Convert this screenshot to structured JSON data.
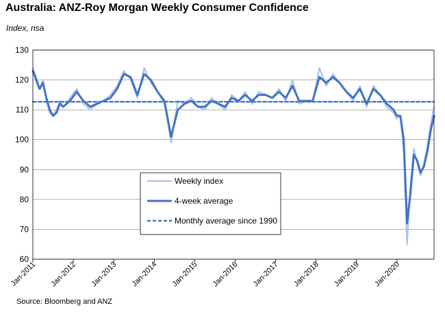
{
  "title": "Australia: ANZ-Roy Morgan Weekly Consumer Confidence",
  "subtitle": "Index, nsa",
  "source": "Source: Bloomberg and ANZ",
  "chart_data": {
    "type": "line",
    "title": "Australia: ANZ-Roy Morgan Weekly Consumer Confidence",
    "ylabel": "Index, nsa",
    "xlabel": "",
    "ylim": [
      60,
      130
    ],
    "yticks": [
      60,
      70,
      80,
      90,
      100,
      110,
      120,
      130
    ],
    "xlim": [
      "2011-01",
      "2020-12"
    ],
    "xticks": [
      "Jan-2011",
      "Jan-2012",
      "Jan-2013",
      "Jan-2014",
      "Jan-2015",
      "Jan-2016",
      "Jan-2017",
      "Jan-2018",
      "Jan-2019",
      "Jan-2020"
    ],
    "grid": "horizontal",
    "legend_position": "center-left",
    "series": [
      {
        "name": "Weekly index",
        "color": "#a9c3e8",
        "style": "thin-solid",
        "x": [
          "2011-01",
          "2011-02",
          "2011-03",
          "2011-04",
          "2011-05",
          "2011-06",
          "2011-07",
          "2011-08",
          "2011-09",
          "2011-10",
          "2011-11",
          "2011-12",
          "2012-02",
          "2012-04",
          "2012-06",
          "2012-08",
          "2012-10",
          "2012-12",
          "2013-02",
          "2013-04",
          "2013-06",
          "2013-08",
          "2013-10",
          "2013-12",
          "2014-02",
          "2014-04",
          "2014-05",
          "2014-06",
          "2014-08",
          "2014-10",
          "2014-12",
          "2015-02",
          "2015-04",
          "2015-06",
          "2015-08",
          "2015-10",
          "2015-12",
          "2016-02",
          "2016-04",
          "2016-06",
          "2016-08",
          "2016-10",
          "2016-12",
          "2017-02",
          "2017-04",
          "2017-06",
          "2017-08",
          "2017-10",
          "2017-12",
          "2018-02",
          "2018-04",
          "2018-06",
          "2018-08",
          "2018-10",
          "2018-12",
          "2019-02",
          "2019-04",
          "2019-06",
          "2019-08",
          "2019-10",
          "2019-12",
          "2020-01",
          "2020-02",
          "2020-03",
          "2020-04",
          "2020-05",
          "2020-06",
          "2020-07",
          "2020-08",
          "2020-09",
          "2020-10",
          "2020-11",
          "2020-12"
        ],
        "y": [
          124,
          121,
          117,
          120,
          113,
          109,
          108,
          110,
          113,
          111,
          112,
          114,
          117,
          112,
          110,
          112,
          113,
          115,
          118,
          123,
          120,
          114,
          124,
          119,
          116,
          112,
          106,
          99,
          113,
          112,
          114,
          111,
          110,
          114,
          112,
          110,
          115,
          113,
          116,
          112,
          116,
          115,
          114,
          117,
          113,
          120,
          112,
          113,
          113,
          124,
          118,
          122,
          119,
          116,
          113,
          118,
          111,
          118,
          115,
          111,
          109,
          107,
          108,
          96,
          65,
          85,
          97,
          92,
          88,
          92,
          98,
          105,
          111
        ]
      },
      {
        "name": "4-week average",
        "color": "#4472c4",
        "style": "thick-solid",
        "x": [
          "2011-01",
          "2011-02",
          "2011-03",
          "2011-04",
          "2011-05",
          "2011-06",
          "2011-07",
          "2011-08",
          "2011-09",
          "2011-10",
          "2011-11",
          "2011-12",
          "2012-02",
          "2012-04",
          "2012-06",
          "2012-08",
          "2012-10",
          "2012-12",
          "2013-02",
          "2013-04",
          "2013-06",
          "2013-08",
          "2013-10",
          "2013-12",
          "2014-02",
          "2014-04",
          "2014-05",
          "2014-06",
          "2014-08",
          "2014-10",
          "2014-12",
          "2015-02",
          "2015-04",
          "2015-06",
          "2015-08",
          "2015-10",
          "2015-12",
          "2016-02",
          "2016-04",
          "2016-06",
          "2016-08",
          "2016-10",
          "2016-12",
          "2017-02",
          "2017-04",
          "2017-06",
          "2017-08",
          "2017-10",
          "2017-12",
          "2018-02",
          "2018-04",
          "2018-06",
          "2018-08",
          "2018-10",
          "2018-12",
          "2019-02",
          "2019-04",
          "2019-06",
          "2019-08",
          "2019-10",
          "2019-12",
          "2020-01",
          "2020-02",
          "2020-03",
          "2020-04",
          "2020-05",
          "2020-06",
          "2020-07",
          "2020-08",
          "2020-09",
          "2020-10",
          "2020-11",
          "2020-12"
        ],
        "y": [
          123,
          120,
          117,
          119,
          114,
          110,
          108,
          109,
          112,
          111,
          112,
          113,
          116,
          113,
          111,
          112,
          113,
          114,
          117,
          122,
          121,
          115,
          122,
          120,
          116,
          113,
          107,
          101,
          110,
          112,
          113,
          111,
          111,
          113,
          112,
          111,
          114,
          113,
          115,
          113,
          115,
          115,
          114,
          116,
          114,
          118,
          113,
          113,
          113,
          121,
          119,
          121,
          119,
          116,
          114,
          117,
          112,
          117,
          115,
          112,
          110,
          108,
          108,
          100,
          72,
          82,
          95,
          93,
          89,
          91,
          96,
          103,
          108
        ]
      },
      {
        "name": "Monthly average since 1990",
        "color": "#4472c4",
        "style": "dashed",
        "x": [
          "2011-01",
          "2020-12"
        ],
        "y": [
          112.7,
          112.7
        ]
      }
    ]
  }
}
